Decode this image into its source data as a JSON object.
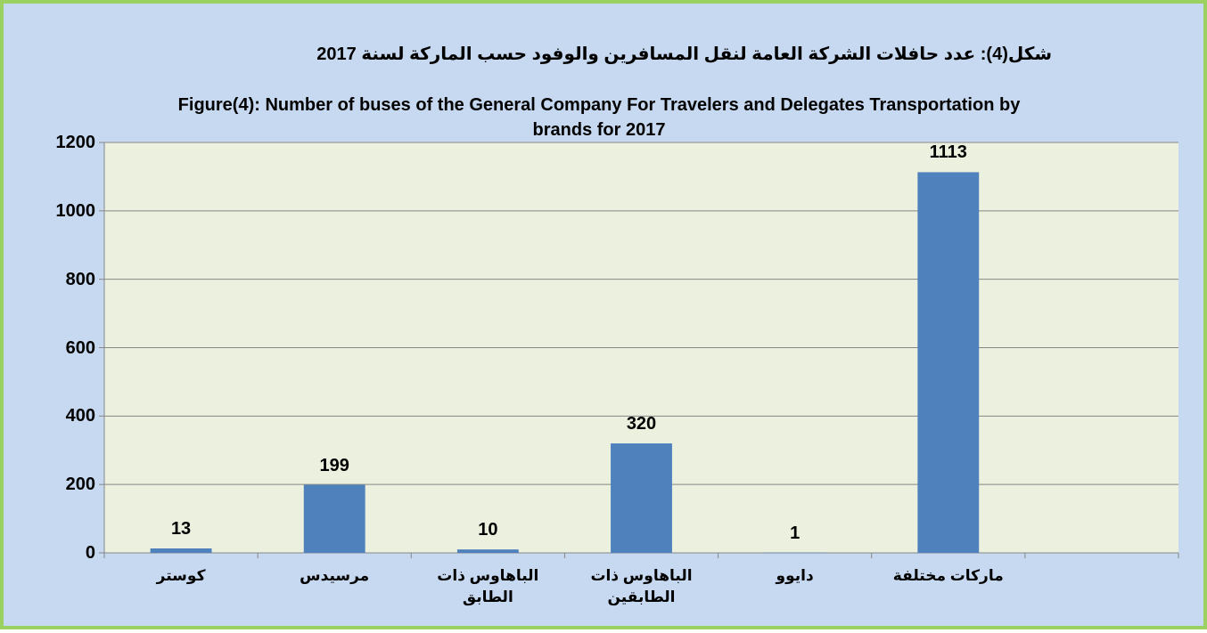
{
  "chart_data": {
    "type": "bar",
    "title_arabic": "شكل(4): عدد حافلات الشركة العامة لنقل المسافرين والوفود حسب الماركة لسنة 2017",
    "title": "Figure(4): Number of buses of the General Company For Travelers and Delegates Transportation by brands for 2017",
    "categories": [
      "كوستر",
      "مرسيدس",
      "الباهاوس ذات الطابق",
      "الباهاوس ذات الطابقين",
      "دايوو",
      "ماركات مختلفة",
      null
    ],
    "values": [
      13,
      199,
      10,
      320,
      1,
      1113,
      null
    ],
    "color": "#4f81bd",
    "ylim": [
      0,
      1200
    ],
    "yticks": [
      0,
      200,
      400,
      600,
      800,
      1000,
      1200
    ],
    "grid": true
  }
}
